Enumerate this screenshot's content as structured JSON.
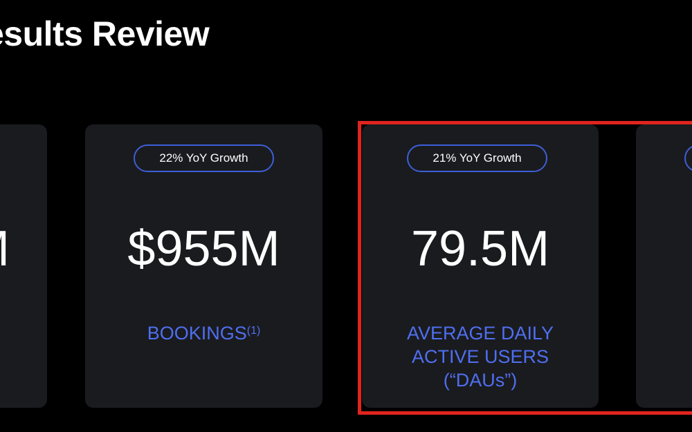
{
  "page": {
    "title": "esults Review"
  },
  "cards": {
    "left": {
      "metric": "M"
    },
    "bookings": {
      "badge": "22% YoY Growth",
      "metric": "$955M",
      "label": "BOOKINGS",
      "footnote": "(1)"
    },
    "dau": {
      "badge": "21% YoY Growth",
      "metric": "79.5M",
      "label_line1": "AVERAGE DAILY",
      "label_line2": "ACTIVE USERS",
      "label_line3": "(“DAUs”)"
    }
  },
  "colors": {
    "background": "#000000",
    "card": "#1a1b1f",
    "accent_blue": "#4f6ff0",
    "badge_border": "#3d5fd8",
    "highlight_red": "#e0241e"
  }
}
